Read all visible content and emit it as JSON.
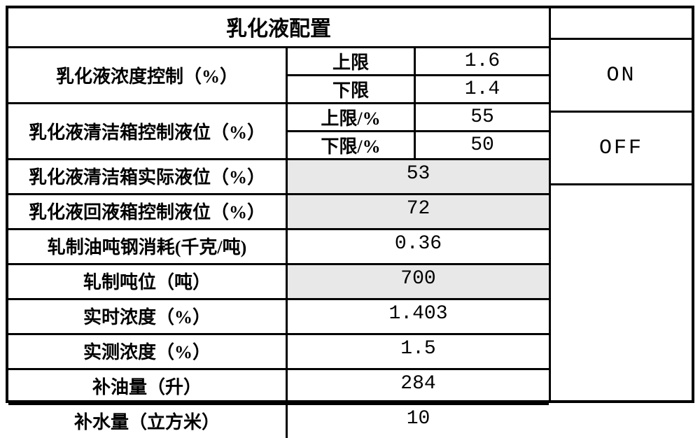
{
  "title": "乳化液配置",
  "concentration_control": {
    "label": "乳化液浓度控制（%）",
    "upper_label": "上限",
    "upper_value": "1.6",
    "lower_label": "下限",
    "lower_value": "1.4"
  },
  "clean_tank_level_control": {
    "label": "乳化液清洁箱控制液位（%）",
    "upper_label": "上限/%",
    "upper_value": "55",
    "lower_label": "下限/%",
    "lower_value": "50"
  },
  "rows": [
    {
      "label": "乳化液清洁箱实际液位（%）",
      "value": "53",
      "shaded": true
    },
    {
      "label": "乳化液回液箱控制液位（%）",
      "value": "72",
      "shaded": true
    },
    {
      "label": "轧制油吨钢消耗(千克/吨)",
      "value": "0.36",
      "shaded": false
    },
    {
      "label": "轧制吨位（吨）",
      "value": "700",
      "shaded": true
    },
    {
      "label": "实时浓度（%）",
      "value": "1.403",
      "shaded": false
    },
    {
      "label": "实测浓度（%）",
      "value": "1.5",
      "shaded": false
    },
    {
      "label": "补油量（升）",
      "value": "284",
      "shaded": false
    },
    {
      "label": "补水量（立方米）",
      "value": "10",
      "shaded": false
    }
  ],
  "buttons": {
    "on": "ON",
    "off": "OFF"
  },
  "style": {
    "border_color": "#000000",
    "shaded_bg": "#e8e8e8",
    "background": "#ffffff",
    "title_fontsize": 30,
    "label_fontsize": 26,
    "value_fontsize": 28,
    "value_font": "Courier New",
    "label_font": "SimSun"
  }
}
